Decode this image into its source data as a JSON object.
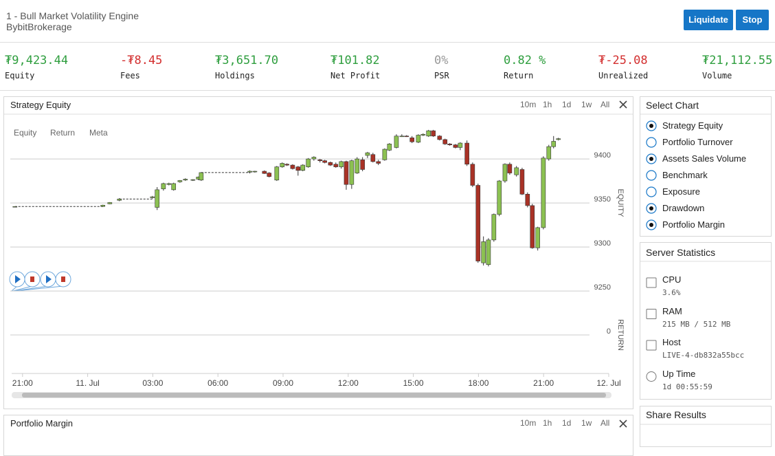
{
  "header": {
    "title": "1 - Bull Market Volatility Engine",
    "subtitle": "BybitBrokerage",
    "buttons": [
      "Liquidate",
      "Stop"
    ]
  },
  "stats": [
    {
      "value": "₮9,423.44",
      "label": "Equity",
      "tone": "positive"
    },
    {
      "value": "-₮8.45",
      "label": "Fees",
      "tone": "negative"
    },
    {
      "value": "₮3,651.70",
      "label": "Holdings",
      "tone": "positive"
    },
    {
      "value": "₮101.82",
      "label": "Net Profit",
      "tone": "positive"
    },
    {
      "value": "0%",
      "label": "PSR",
      "tone": "neutral"
    },
    {
      "value": "0.82 %",
      "label": "Return",
      "tone": "positive"
    },
    {
      "value": "₮-25.08",
      "label": "Unrealized",
      "tone": "negative"
    },
    {
      "value": "₮21,112.55",
      "label": "Volume",
      "tone": "positive"
    }
  ],
  "chart_panel": {
    "title": "Strategy Equity",
    "ranges": [
      "10m",
      "1h",
      "1d",
      "1w",
      "All"
    ],
    "tabs": [
      "Equity",
      "Return",
      "Meta"
    ]
  },
  "chart_data": {
    "type": "candlestick",
    "ylabel": "EQUITY",
    "y2label": "RETURN",
    "up_color": "#8cc152",
    "down_color": "#a93226",
    "grid": true,
    "xlim": [
      -0.5,
      27
    ],
    "xticks": [
      {
        "value": 0,
        "label": "21:00"
      },
      {
        "value": 3,
        "label": "11. Jul"
      },
      {
        "value": 6,
        "label": "03:00"
      },
      {
        "value": 9,
        "label": "06:00"
      },
      {
        "value": 12,
        "label": "09:00"
      },
      {
        "value": 15,
        "label": "12:00"
      },
      {
        "value": 18,
        "label": "15:00"
      },
      {
        "value": 21,
        "label": "18:00"
      },
      {
        "value": 24,
        "label": "21:00"
      },
      {
        "value": 27,
        "label": "12. Jul"
      }
    ],
    "ylim": [
      9229,
      9436
    ],
    "yticks": [
      9250,
      9300,
      9350,
      9400
    ],
    "y2lim": [
      -1,
      1
    ],
    "y2ticks": [
      0
    ],
    "x": [
      -0.35,
      3.7,
      4.02,
      4.46,
      5.98,
      6.2,
      6.49,
      6.74,
      6.96,
      7.25,
      7.5,
      7.85,
      8.1,
      8.23,
      10.47,
      10.7,
      11.14,
      11.36,
      11.71,
      11.96,
      12.18,
      12.44,
      12.69,
      12.91,
      13.16,
      13.42,
      13.7,
      13.92,
      14.18,
      14.43,
      14.68,
      14.91,
      15.16,
      15.41,
      15.66,
      15.89,
      16.14,
      16.39,
      16.68,
      16.9,
      17.22,
      17.47,
      17.69,
      17.94,
      18.23,
      18.45,
      18.7,
      18.92,
      19.21,
      19.46,
      19.68,
      19.94,
      20.16,
      20.47,
      20.73,
      20.98,
      21.23,
      21.46,
      21.71,
      21.96,
      22.22,
      22.44,
      22.75,
      23.01,
      23.26,
      23.48,
      23.73,
      23.99,
      24.24,
      24.46,
      24.68
    ],
    "open": [
      9346,
      9346,
      9349,
      9353,
      9356,
      9345,
      9366,
      9371,
      9365,
      9374,
      9376,
      9376,
      9377,
      9376,
      9385,
      9385.5,
      9386,
      9384,
      9376,
      9391,
      9394,
      9393,
      9391,
      9387,
      9391,
      9400,
      9399,
      9398,
      9396,
      9394,
      9391,
      9397,
      9371,
      9384,
      9399,
      9404,
      9405,
      9397,
      9399,
      9410,
      9413,
      9426,
      9426,
      9424,
      9419,
      9427,
      9426,
      9432,
      9426,
      9422,
      9417,
      9416,
      9413,
      9418,
      9394,
      9370,
      9282,
      9280,
      9308,
      9337,
      9375,
      9394,
      9382,
      9388,
      9360,
      9347,
      9299,
      9322,
      9400,
      9414,
      9422
    ],
    "high": [
      9346,
      9348,
      9351,
      9355.5,
      9358,
      9368,
      9373,
      9373,
      9373,
      9376,
      9378,
      9377,
      9380,
      9385,
      9387,
      9386.5,
      9387,
      9385,
      9392,
      9396,
      9395,
      9394,
      9392,
      9394,
      9401,
      9403,
      9400,
      9399,
      9397,
      9396,
      9398,
      9398,
      9399,
      9402,
      9402,
      9408,
      9407,
      9399,
      9412,
      9418,
      9428,
      9428,
      9427,
      9426,
      9428,
      9429,
      9433,
      9433,
      9427,
      9423,
      9418,
      9417,
      9419,
      9421,
      9396,
      9372,
      9312,
      9310,
      9338,
      9376,
      9395,
      9396,
      9392,
      9390,
      9362,
      9349,
      9323,
      9403,
      9416,
      9426,
      9424
    ],
    "low": [
      9346,
      9345.5,
      9348.5,
      9352,
      9355,
      9342,
      9364,
      9370,
      9364,
      9373,
      9375,
      9375,
      9376,
      9375,
      9383.5,
      9384.5,
      9383,
      9379,
      9375,
      9390,
      9392,
      9388,
      9381,
      9386,
      9390,
      9398,
      9396,
      9395,
      9392,
      9390,
      9389,
      9365,
      9366,
      9383,
      9386,
      9401,
      9396,
      9393,
      9398,
      9409,
      9412,
      9425,
      9425,
      9418,
      9418,
      9426,
      9425,
      9425,
      9421,
      9416,
      9415,
      9412,
      9410,
      9392,
      9368,
      9282,
      9279,
      9278,
      9306,
      9335,
      9373,
      9382,
      9380,
      9359,
      9345,
      9298,
      9296,
      9320,
      9398,
      9412,
      9421
    ],
    "close": [
      9346,
      9347.5,
      9350.5,
      9354.5,
      9357,
      9365,
      9372,
      9372,
      9372,
      9375.5,
      9377,
      9376.5,
      9379.5,
      9384.5,
      9386,
      9386,
      9383.5,
      9380,
      9391,
      9395,
      9393,
      9389,
      9387,
      9393,
      9400,
      9402,
      9398,
      9396,
      9393,
      9391,
      9397,
      9371,
      9398,
      9400,
      9388,
      9407,
      9397,
      9395,
      9411,
      9417,
      9426,
      9426,
      9425.5,
      9419.5,
      9427,
      9428,
      9432,
      9426,
      9422,
      9417,
      9416,
      9413,
      9418,
      9394,
      9370,
      9284,
      9306,
      9308,
      9337,
      9375,
      9394,
      9384,
      9390,
      9360,
      9347,
      9299,
      9322,
      9401,
      9414,
      9420,
      9423
    ]
  },
  "select_chart": {
    "title": "Select Chart",
    "options": [
      {
        "label": "Strategy Equity",
        "checked": true
      },
      {
        "label": "Portfolio Turnover",
        "checked": false
      },
      {
        "label": "Assets Sales Volume",
        "checked": true
      },
      {
        "label": "Benchmark",
        "checked": false
      },
      {
        "label": "Exposure",
        "checked": false
      },
      {
        "label": "Drawdown",
        "checked": true
      },
      {
        "label": "Portfolio Margin",
        "checked": true
      }
    ]
  },
  "server_statistics": {
    "title": "Server Statistics",
    "items": [
      {
        "label": "CPU",
        "value": "3.6%"
      },
      {
        "label": "RAM",
        "value": "215 MB / 512 MB"
      },
      {
        "label": "Host",
        "value": "LIVE-4-db832a55bcc"
      },
      {
        "label": "Up Time",
        "value": "1d 00:55:59"
      }
    ]
  },
  "share_results": {
    "title": "Share Results"
  },
  "second_panel": {
    "title": "Portfolio Margin",
    "ranges": [
      "10m",
      "1h",
      "1d",
      "1w",
      "All"
    ]
  }
}
